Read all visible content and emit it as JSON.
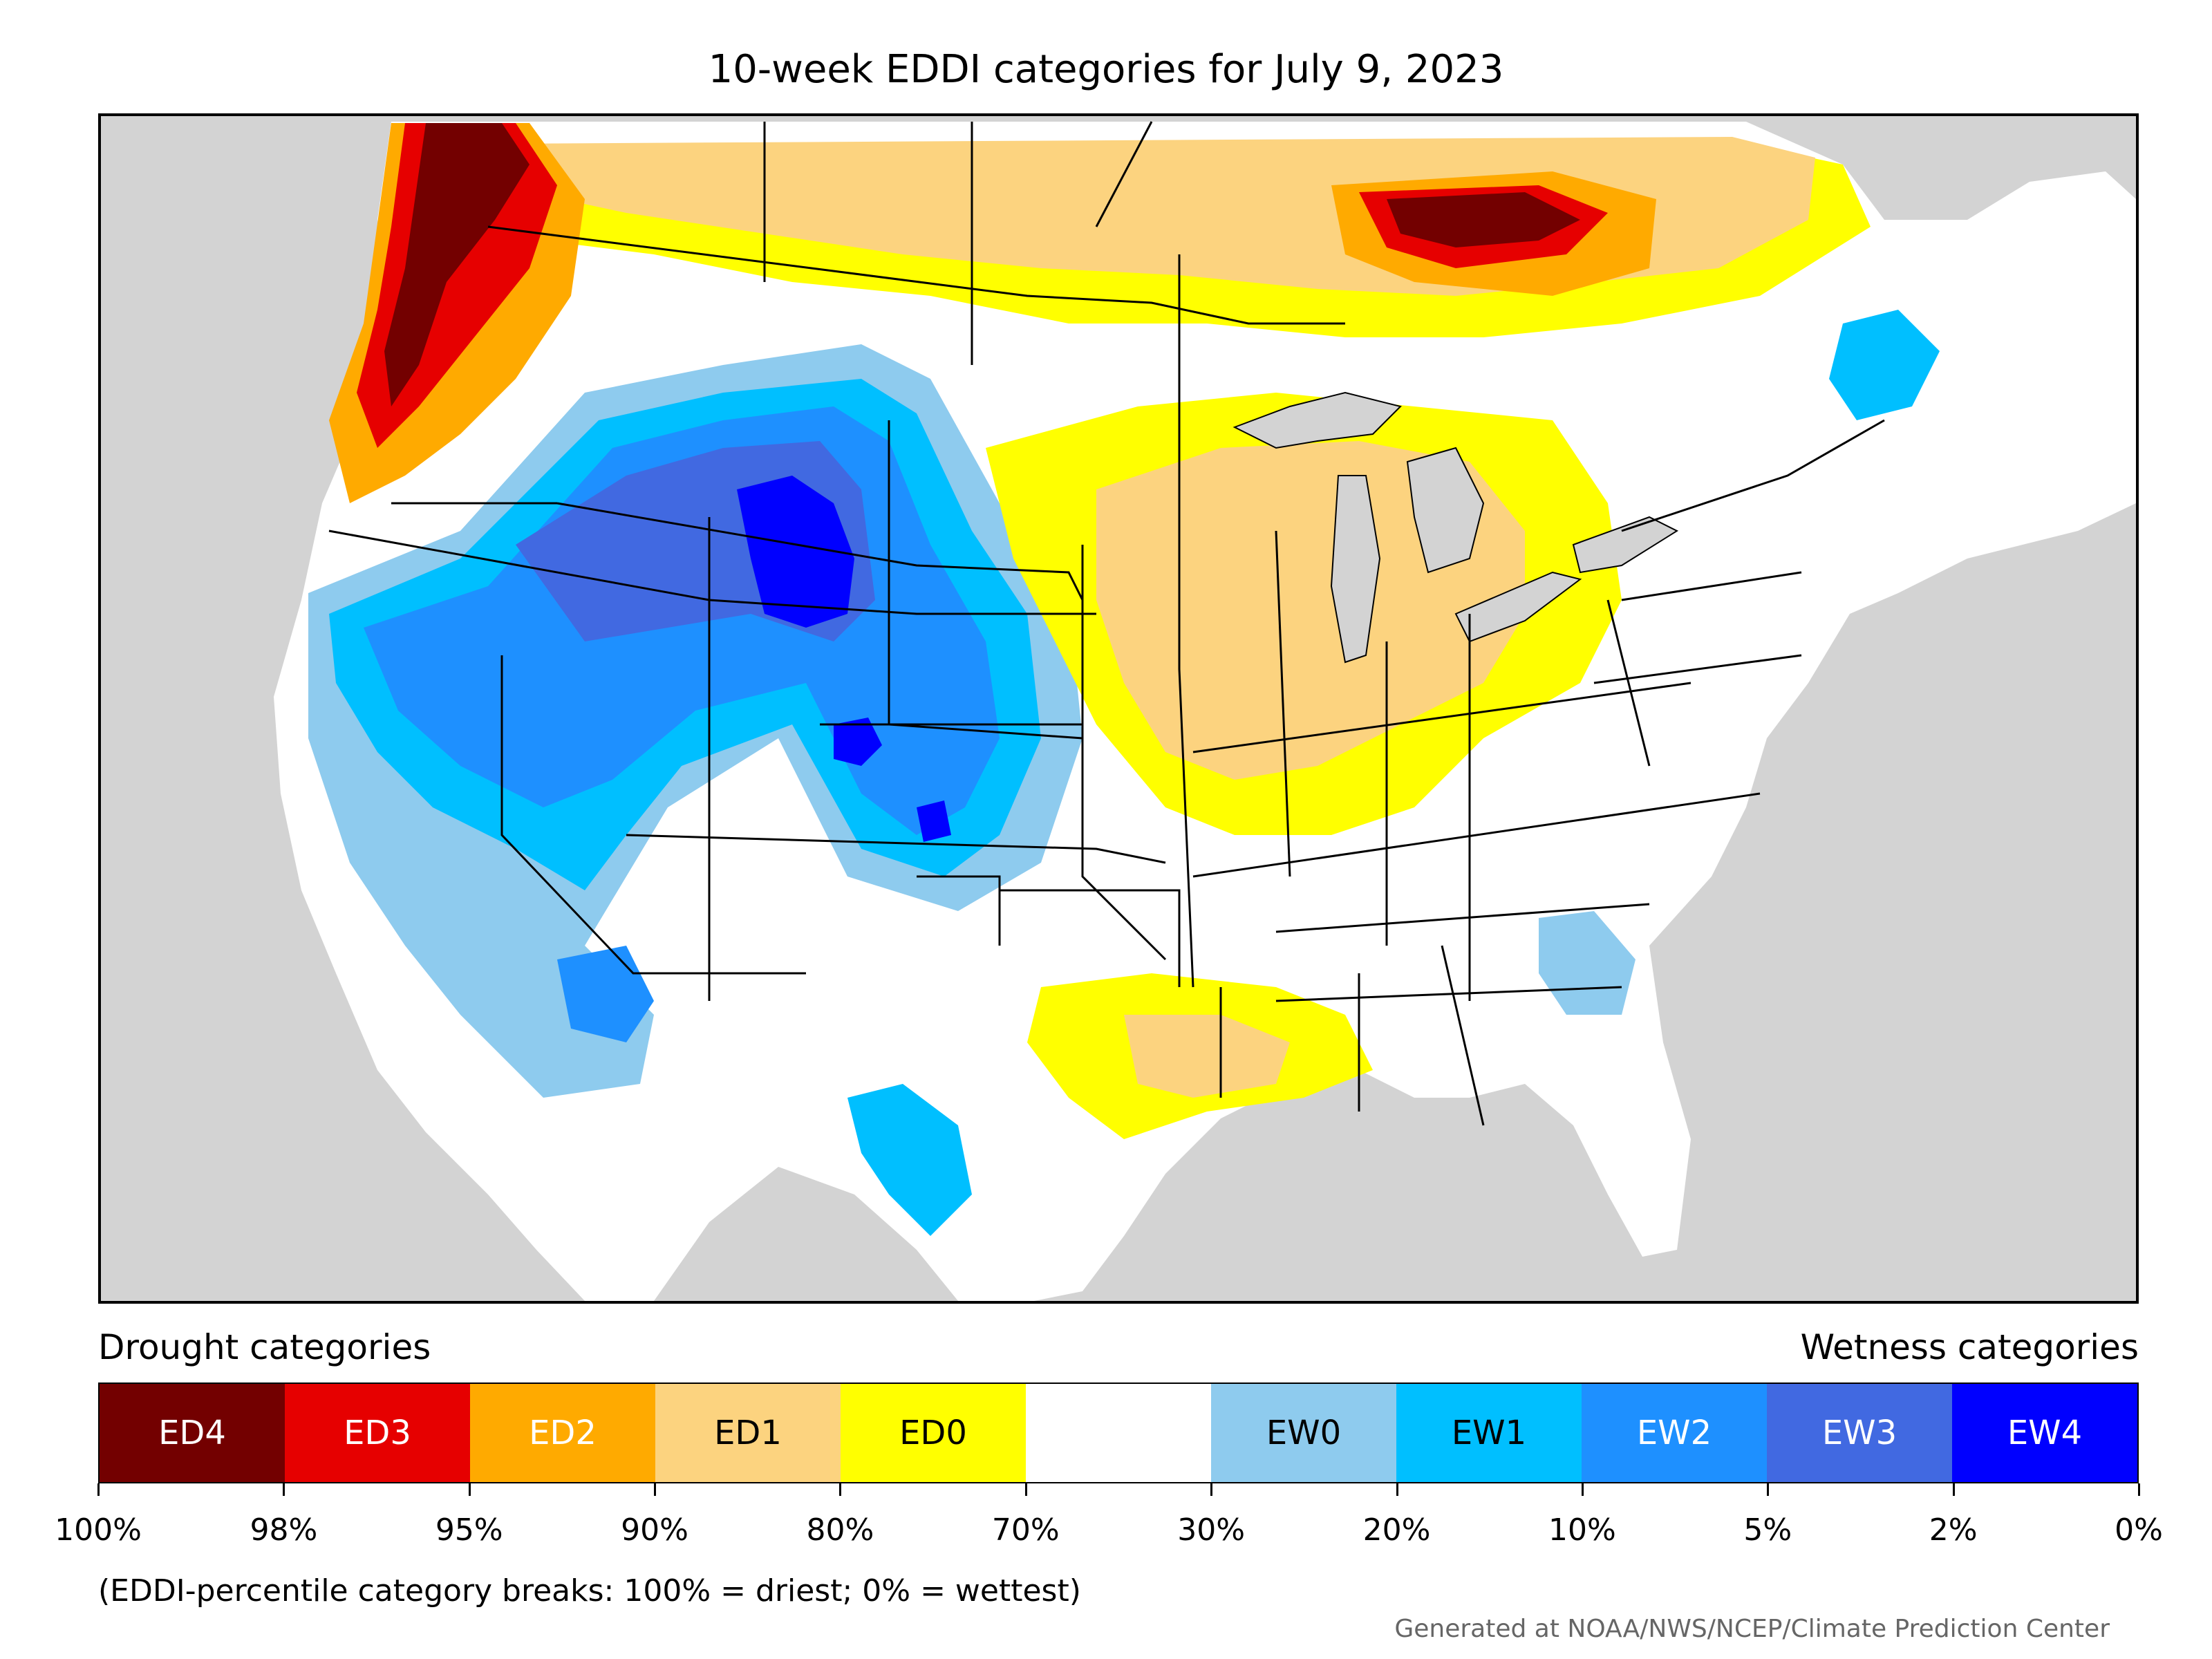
{
  "title": "10-week EDDI categories for July 9, 2023",
  "legend": {
    "drought_label": "Drought categories",
    "wetness_label": "Wetness categories",
    "categories": [
      {
        "label": "ED4",
        "color": "#730000",
        "text_color": "#ffffff"
      },
      {
        "label": "ED3",
        "color": "#e60000",
        "text_color": "#ffffff"
      },
      {
        "label": "ED2",
        "color": "#ffaa00",
        "text_color": "#ffffff"
      },
      {
        "label": "ED1",
        "color": "#fcd37f",
        "text_color": "#000000"
      },
      {
        "label": "ED0",
        "color": "#ffff00",
        "text_color": "#000000"
      },
      {
        "label": "",
        "color": "#ffffff",
        "text_color": "#000000"
      },
      {
        "label": "EW0",
        "color": "#8ecbee",
        "text_color": "#000000"
      },
      {
        "label": "EW1",
        "color": "#00bfff",
        "text_color": "#000000"
      },
      {
        "label": "EW2",
        "color": "#1e90ff",
        "text_color": "#ffffff"
      },
      {
        "label": "EW3",
        "color": "#4169e1",
        "text_color": "#ffffff"
      },
      {
        "label": "EW4",
        "color": "#0000ff",
        "text_color": "#ffffff"
      }
    ],
    "breaks": [
      "100%",
      "98%",
      "95%",
      "90%",
      "80%",
      "70%",
      "30%",
      "20%",
      "10%",
      "5%",
      "2%",
      "0%"
    ]
  },
  "note": "(EDDI-percentile category breaks: 100% = driest; 0% = wettest)",
  "credit": "Generated at NOAA/NWS/NCEP/Climate Prediction Center",
  "map": {
    "background_color": "#d3d3d3",
    "land_color": "#ffffff",
    "border_color": "#000000",
    "lakes_color": "#d3d3d3"
  }
}
